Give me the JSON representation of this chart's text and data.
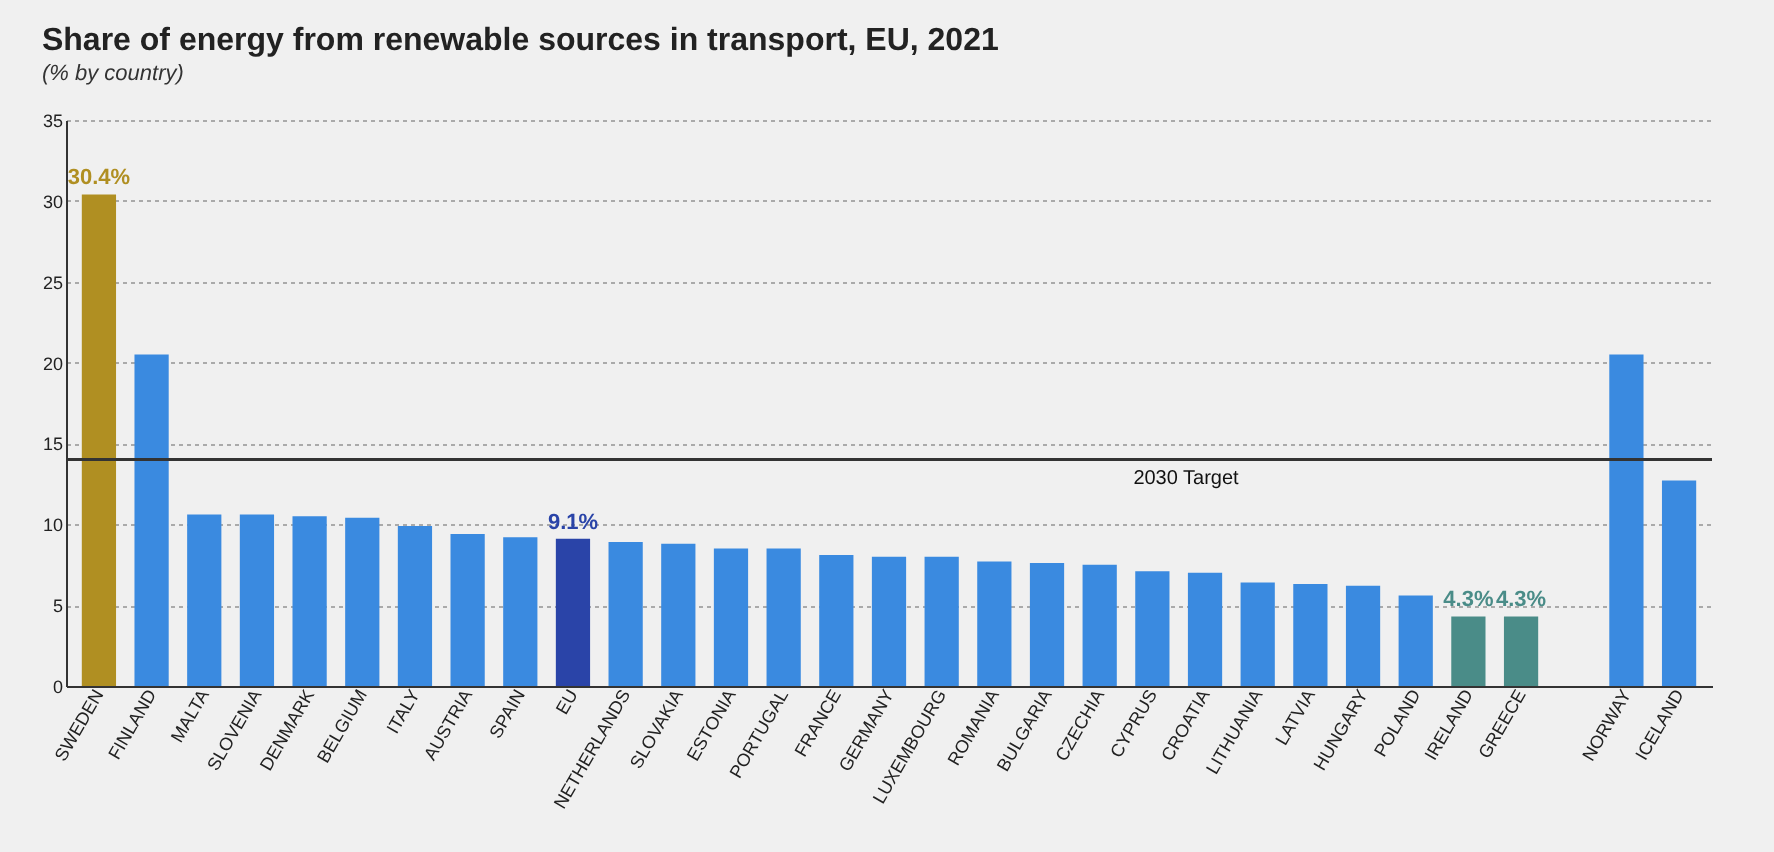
{
  "chart_data": {
    "type": "bar",
    "title": "Share of energy from renewable sources in transport, EU, 2021",
    "subtitle": "(% by country)",
    "categories": [
      "SWEDEN",
      "FINLAND",
      "MALTA",
      "SLOVENIA",
      "DENMARK",
      "BELGIUM",
      "ITALY",
      "AUSTRIA",
      "SPAIN",
      "EU",
      "NETHERLANDS",
      "SLOVAKIA",
      "ESTONIA",
      "PORTUGAL",
      "FRANCE",
      "GERMANY",
      "LUXEMBOURG",
      "ROMANIA",
      "BULGARIA",
      "CZECHIA",
      "CYPRUS",
      "CROATIA",
      "LITHUANIA",
      "LATVIA",
      "HUNGARY",
      "POLAND",
      "IRELAND",
      "GREECE",
      null,
      "NORWAY",
      "ICELAND"
    ],
    "values": [
      30.4,
      20.5,
      10.6,
      10.6,
      10.5,
      10.4,
      9.9,
      9.4,
      9.2,
      9.1,
      8.9,
      8.8,
      8.5,
      8.5,
      8.1,
      8.0,
      8.0,
      7.7,
      7.6,
      7.5,
      7.1,
      7.0,
      6.4,
      6.3,
      6.2,
      5.6,
      4.3,
      4.3,
      null,
      20.5,
      12.7
    ],
    "colors": [
      "#b08f22",
      "#3a8ae0",
      "#3a8ae0",
      "#3a8ae0",
      "#3a8ae0",
      "#3a8ae0",
      "#3a8ae0",
      "#3a8ae0",
      "#3a8ae0",
      "#2a44a8",
      "#3a8ae0",
      "#3a8ae0",
      "#3a8ae0",
      "#3a8ae0",
      "#3a8ae0",
      "#3a8ae0",
      "#3a8ae0",
      "#3a8ae0",
      "#3a8ae0",
      "#3a8ae0",
      "#3a8ae0",
      "#3a8ae0",
      "#3a8ae0",
      "#3a8ae0",
      "#3a8ae0",
      "#3a8ae0",
      "#4a8c88",
      "#4a8c88",
      "#3a8ae0",
      "#3a8ae0",
      "#3a8ae0"
    ],
    "value_labels": [
      "30.4%",
      null,
      null,
      null,
      null,
      null,
      null,
      null,
      null,
      "9.1%",
      null,
      null,
      null,
      null,
      null,
      null,
      null,
      null,
      null,
      null,
      null,
      null,
      null,
      null,
      null,
      null,
      "4.3%",
      "4.3%",
      null,
      null,
      null
    ],
    "ylim": [
      0,
      35
    ],
    "yticks": [
      0,
      5,
      10,
      15,
      20,
      25,
      30,
      35
    ],
    "grid": "y",
    "ref_lines": [
      {
        "axis": "y",
        "value": 14,
        "label": "2030 Target",
        "color": "#333333"
      }
    ]
  }
}
